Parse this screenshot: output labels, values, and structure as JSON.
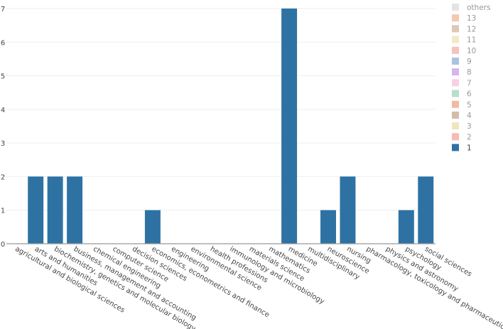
{
  "chart_data": {
    "type": "bar",
    "title": "",
    "xlabel": "",
    "ylabel": "",
    "ylim": [
      0,
      7
    ],
    "yticks": [
      0,
      1,
      2,
      3,
      4,
      5,
      6,
      7
    ],
    "grid": true,
    "legend_position": "right",
    "categories": [
      "agricultural and biological sciences",
      "arts and humanities",
      "biochemistry, genetics and molecular biology",
      "business, management and accounting",
      "chemical engineering",
      "computer science",
      "decision sciences",
      "economics, econometrics and finance",
      "engineering",
      "environmental science",
      "health professions",
      "immunology and microbiology",
      "materials science",
      "mathematics",
      "medicine",
      "multidisciplinary",
      "neuroscience",
      "nursing",
      "pharmacology, toxicology and pharmaceutics",
      "physics and astronomy",
      "psychology",
      "social sciences"
    ],
    "series": [
      {
        "name": "1",
        "color": "#2e72a4",
        "values": [
          0,
          2,
          2,
          2,
          0,
          0,
          0,
          1,
          0,
          0,
          0,
          0,
          0,
          0,
          7,
          0,
          1,
          2,
          0,
          0,
          1,
          2
        ]
      }
    ],
    "legend": [
      {
        "label": "others",
        "color": "#e3e3e3",
        "active": false
      },
      {
        "label": "13",
        "color": "#f3c9b0",
        "active": false
      },
      {
        "label": "12",
        "color": "#dcc8b3",
        "active": false
      },
      {
        "label": "11",
        "color": "#f3e9c6",
        "active": false
      },
      {
        "label": "10",
        "color": "#f5c2bd",
        "active": false
      },
      {
        "label": "9",
        "color": "#a9c4df",
        "active": false
      },
      {
        "label": "8",
        "color": "#d3b6ec",
        "active": false
      },
      {
        "label": "7",
        "color": "#f7d0e4",
        "active": false
      },
      {
        "label": "6",
        "color": "#b7dfca",
        "active": false
      },
      {
        "label": "5",
        "color": "#f1bba2",
        "active": false
      },
      {
        "label": "4",
        "color": "#d4bda6",
        "active": false
      },
      {
        "label": "3",
        "color": "#efe5bf",
        "active": false
      },
      {
        "label": "2",
        "color": "#f5bcb4",
        "active": false
      },
      {
        "label": "1",
        "color": "#2e72a4",
        "active": true
      }
    ]
  }
}
